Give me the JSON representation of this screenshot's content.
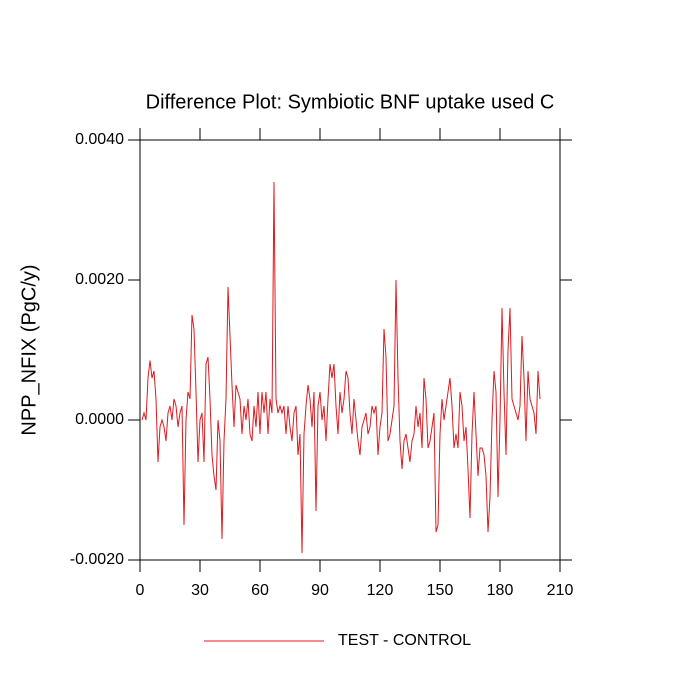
{
  "chart_data": {
    "type": "line",
    "title": "Difference Plot: Symbiotic BNF uptake used C",
    "y_label": "NPP_NFIX  (PgC/y)",
    "legend": "bottom",
    "xlim": [
      0,
      210
    ],
    "xticks": [
      0,
      30,
      60,
      90,
      120,
      150,
      180,
      210
    ],
    "ylim": [
      -0.002,
      0.004
    ],
    "yticks": [
      {
        "value": -0.002,
        "label": "-0.0020"
      },
      {
        "value": 0,
        "label": "0.0000"
      },
      {
        "value": 0.002,
        "label": "0.0020"
      },
      {
        "value": 0.004,
        "label": "0.0040"
      }
    ],
    "x": [
      1,
      2,
      3,
      4,
      5,
      6,
      7,
      8,
      9,
      10,
      11,
      12,
      13,
      14,
      15,
      16,
      17,
      18,
      19,
      20,
      21,
      22,
      23,
      24,
      25,
      26,
      27,
      28,
      29,
      30,
      31,
      32,
      33,
      34,
      35,
      36,
      37,
      38,
      39,
      40,
      41,
      42,
      43,
      44,
      45,
      46,
      47,
      48,
      49,
      50,
      51,
      52,
      53,
      54,
      55,
      56,
      57,
      58,
      59,
      60,
      61,
      62,
      63,
      64,
      65,
      66,
      67,
      68,
      69,
      70,
      71,
      72,
      73,
      74,
      75,
      76,
      77,
      78,
      79,
      80,
      81,
      82,
      83,
      84,
      85,
      86,
      87,
      88,
      89,
      90,
      91,
      92,
      93,
      94,
      95,
      96,
      97,
      98,
      99,
      100,
      101,
      102,
      103,
      104,
      105,
      106,
      107,
      108,
      109,
      110,
      111,
      112,
      113,
      114,
      115,
      116,
      117,
      118,
      119,
      120,
      121,
      122,
      123,
      124,
      125,
      126,
      127,
      128,
      129,
      130,
      131,
      132,
      133,
      134,
      135,
      136,
      137,
      138,
      139,
      140,
      141,
      142,
      143,
      144,
      145,
      146,
      147,
      148,
      149,
      150,
      151,
      152,
      153,
      154,
      155,
      156,
      157,
      158,
      159,
      160,
      161,
      162,
      163,
      164,
      165,
      166,
      167,
      168,
      169,
      170,
      171,
      172,
      173,
      174,
      175,
      176,
      177,
      178,
      179,
      180,
      181,
      182,
      183,
      184,
      185,
      186,
      187,
      188,
      189,
      190,
      191,
      192,
      193,
      194,
      195,
      196,
      197,
      198,
      199,
      200
    ],
    "series": [
      {
        "name": "TEST - CONTROL",
        "color": "#e0191e",
        "values": [
          0.0,
          0.0001,
          0.0,
          0.0006,
          0.00085,
          0.0006,
          0.0007,
          0.0003,
          -0.0006,
          -0.0001,
          0.0,
          -0.0001,
          -0.0003,
          0.0001,
          0.0002,
          0.0,
          0.0003,
          0.0002,
          -0.0001,
          0.0001,
          0.0002,
          -0.0015,
          0.0,
          0.0004,
          0.0003,
          0.0015,
          0.0013,
          0.0004,
          -0.0006,
          0.0,
          0.0001,
          -0.0006,
          0.0008,
          0.0009,
          0.0003,
          -0.0005,
          -0.0008,
          -0.001,
          0.0,
          -0.0003,
          -0.0017,
          -0.0003,
          0.0003,
          0.0019,
          0.0012,
          0.0005,
          -0.0001,
          0.0005,
          0.0004,
          0.0003,
          -0.0002,
          0.0002,
          0.0,
          0.0003,
          -0.0002,
          -0.0003,
          0.0002,
          -0.0001,
          0.0004,
          -0.0002,
          0.0004,
          0.0001,
          0.0004,
          -0.0002,
          0.0003,
          0.0001,
          0.0034,
          0.0003,
          0.0001,
          0.0002,
          0.0001,
          0.0002,
          -0.0002,
          0.0002,
          -0.0001,
          -0.0003,
          0.0001,
          0.0002,
          -0.0005,
          -0.0002,
          -0.0019,
          -0.0002,
          0.0002,
          0.0005,
          0.0003,
          -0.0001,
          0.0004,
          -0.0013,
          0.0002,
          0.0004,
          0.0,
          0.0002,
          -0.0003,
          0.0003,
          0.0008,
          0.0006,
          0.0008,
          0.0002,
          -0.0002,
          0.0004,
          0.0001,
          0.0003,
          0.0007,
          0.0006,
          0.0001,
          -0.0002,
          0.0003,
          0.0,
          -0.0003,
          -0.0005,
          -0.0001,
          0.0,
          0.0001,
          -0.0002,
          -0.0001,
          0.0002,
          0.0001,
          0.0002,
          -0.0005,
          -0.0001,
          0.0001,
          0.0013,
          0.0009,
          -0.0003,
          -0.0002,
          0.0,
          0.0002,
          0.002,
          0.0006,
          -0.0003,
          -0.0007,
          -0.0003,
          -0.0002,
          -0.0004,
          -0.0006,
          -0.0003,
          -0.0002,
          0.0002,
          -0.0001,
          0.0001,
          -0.0004,
          0.0006,
          0.0003,
          -0.0004,
          -0.0003,
          -0.0001,
          0.0001,
          -0.0016,
          -0.0015,
          -0.0002,
          0.0003,
          0.0,
          0.0002,
          0.0004,
          0.0006,
          0.0002,
          -0.0004,
          -0.0002,
          -0.0004,
          0.0004,
          0.0002,
          -0.0003,
          -0.0001,
          -0.0007,
          -0.0014,
          -0.0002,
          0.0004,
          -0.0002,
          -0.0008,
          -0.0004,
          -0.0004,
          -0.0005,
          -0.0008,
          -0.0016,
          -0.0011,
          0.0,
          0.0007,
          0.0004,
          -0.0011,
          0.0,
          0.0016,
          0.0004,
          -0.0005,
          0.001,
          0.0016,
          0.0003,
          0.0002,
          0.0001,
          0.0,
          0.0002,
          0.0012,
          0.0006,
          -0.0003,
          0.0007,
          0.0003,
          0.0002,
          0.0001,
          -0.0002,
          0.0007,
          0.0003
        ]
      }
    ]
  }
}
